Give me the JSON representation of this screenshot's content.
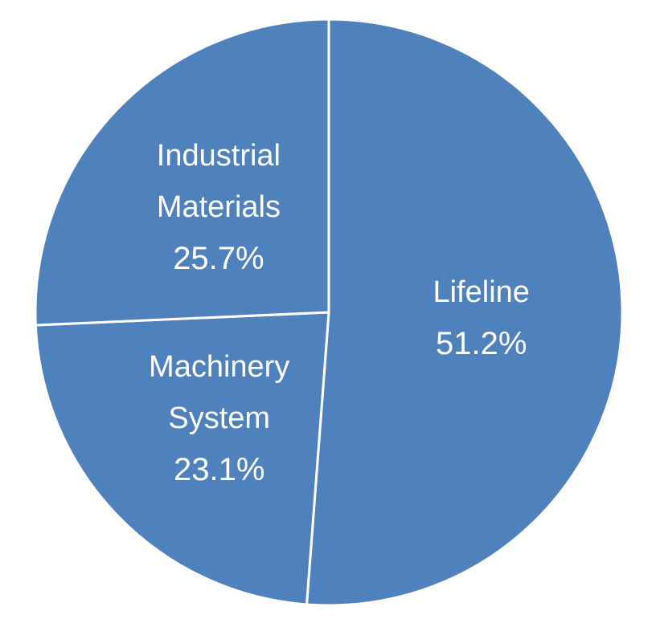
{
  "chart_data": {
    "type": "pie",
    "title": "",
    "slice_color": "#4f81bd",
    "separator_color": "#ffffff",
    "slices": [
      {
        "label_lines": [
          "Lifeline"
        ],
        "value": 51.2,
        "value_label": "51.2%"
      },
      {
        "label_lines": [
          "Machinery",
          "System"
        ],
        "value": 23.1,
        "value_label": "23.1%"
      },
      {
        "label_lines": [
          "Industrial",
          "Materials"
        ],
        "value": 25.7,
        "value_label": "25.7%"
      }
    ]
  }
}
